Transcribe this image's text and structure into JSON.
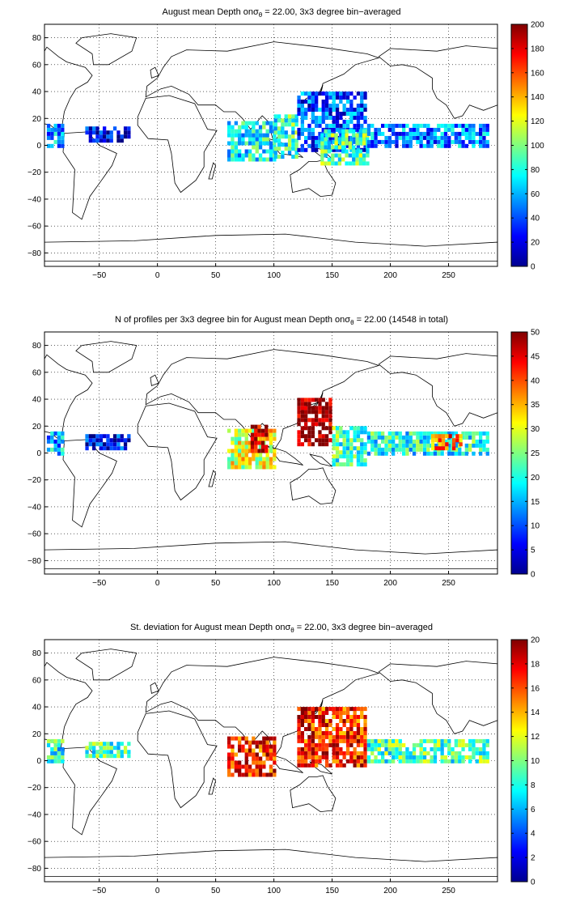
{
  "figure": {
    "panels": [
      {
        "title": "August mean Depth onσ",
        "title_sub": "θ",
        "title_tail": " = 22.00, 3x3 degree bin−averaged",
        "colorbar_ticks": [
          "0",
          "20",
          "40",
          "60",
          "80",
          "100",
          "120",
          "140",
          "160",
          "180",
          "200"
        ]
      },
      {
        "title": "N of profiles per 3x3 degree bin for August mean Depth onσ",
        "title_sub": "θ",
        "title_tail": " = 22.00 (14548 in total)",
        "colorbar_ticks": [
          "0",
          "5",
          "10",
          "15",
          "20",
          "25",
          "30",
          "35",
          "40",
          "45",
          "50"
        ]
      },
      {
        "title": "St. deviation for August mean Depth onσ",
        "title_sub": "θ",
        "title_tail": " = 22.00, 3x3 degree bin−averaged",
        "colorbar_ticks": [
          "0",
          "2",
          "4",
          "6",
          "8",
          "10",
          "12",
          "14",
          "16",
          "18",
          "20"
        ]
      }
    ]
  },
  "chart_data": [
    {
      "type": "heatmap",
      "title": "August mean Depth on σθ = 22.00, 3x3 degree bin-averaged",
      "x_ticks": [
        -50,
        0,
        50,
        100,
        150,
        200,
        250
      ],
      "y_ticks": [
        -80,
        -60,
        -40,
        -20,
        0,
        20,
        40,
        60,
        80
      ],
      "xlim": [
        -97,
        292
      ],
      "ylim": [
        -90,
        90
      ],
      "colorbar_range": [
        0,
        200
      ],
      "colormap": "jet",
      "grid": true,
      "regions": [
        {
          "lon": [
            -95,
            -80
          ],
          "lat": [
            -2,
            16
          ],
          "value": 55
        },
        {
          "lon": [
            -62,
            -25
          ],
          "lat": [
            2,
            14
          ],
          "value": 20
        },
        {
          "lon": [
            60,
            100
          ],
          "lat": [
            -12,
            16
          ],
          "value": 75
        },
        {
          "lon": [
            100,
            120
          ],
          "lat": [
            -10,
            22
          ],
          "value": 85
        },
        {
          "lon": [
            120,
            180
          ],
          "lat": [
            -5,
            38
          ],
          "value": 40
        },
        {
          "lon": [
            140,
            180
          ],
          "lat": [
            -15,
            10
          ],
          "value": 90
        },
        {
          "lon": [
            180,
            285
          ],
          "lat": [
            -2,
            14
          ],
          "value": 50
        }
      ]
    },
    {
      "type": "heatmap",
      "title": "N of profiles per 3x3 degree bin for August mean Depth on σθ = 22.00 (14548 in total)",
      "x_ticks": [
        -50,
        0,
        50,
        100,
        150,
        200,
        250
      ],
      "y_ticks": [
        -80,
        -60,
        -40,
        -20,
        0,
        20,
        40,
        60,
        80
      ],
      "xlim": [
        -97,
        292
      ],
      "ylim": [
        -90,
        90
      ],
      "colorbar_range": [
        0,
        50
      ],
      "colormap": "jet",
      "grid": true,
      "regions": [
        {
          "lon": [
            -95,
            -80
          ],
          "lat": [
            -2,
            16
          ],
          "value": 15
        },
        {
          "lon": [
            -62,
            -25
          ],
          "lat": [
            2,
            14
          ],
          "value": 6
        },
        {
          "lon": [
            60,
            100
          ],
          "lat": [
            -12,
            16
          ],
          "value": 30
        },
        {
          "lon": [
            80,
            95
          ],
          "lat": [
            0,
            20
          ],
          "value": 48
        },
        {
          "lon": [
            120,
            150
          ],
          "lat": [
            5,
            40
          ],
          "value": 50
        },
        {
          "lon": [
            150,
            180
          ],
          "lat": [
            -10,
            20
          ],
          "value": 22
        },
        {
          "lon": [
            180,
            285
          ],
          "lat": [
            -2,
            14
          ],
          "value": 20
        },
        {
          "lon": [
            235,
            260
          ],
          "lat": [
            2,
            12
          ],
          "value": 38
        }
      ],
      "total_profiles": 14548
    },
    {
      "type": "heatmap",
      "title": "St. deviation for August mean Depth on σθ = 22.00, 3x3 degree bin-averaged",
      "x_ticks": [
        -50,
        0,
        50,
        100,
        150,
        200,
        250
      ],
      "y_ticks": [
        -80,
        -60,
        -40,
        -20,
        0,
        20,
        40,
        60,
        80
      ],
      "xlim": [
        -97,
        292
      ],
      "ylim": [
        -90,
        90
      ],
      "colorbar_range": [
        0,
        20
      ],
      "colormap": "jet",
      "grid": true,
      "regions": [
        {
          "lon": [
            -95,
            -80
          ],
          "lat": [
            -2,
            16
          ],
          "value": 8
        },
        {
          "lon": [
            -62,
            -25
          ],
          "lat": [
            2,
            14
          ],
          "value": 9
        },
        {
          "lon": [
            60,
            100
          ],
          "lat": [
            -12,
            16
          ],
          "value": 17
        },
        {
          "lon": [
            120,
            180
          ],
          "lat": [
            -5,
            38
          ],
          "value": 17
        },
        {
          "lon": [
            180,
            285
          ],
          "lat": [
            -2,
            14
          ],
          "value": 9
        }
      ]
    }
  ]
}
